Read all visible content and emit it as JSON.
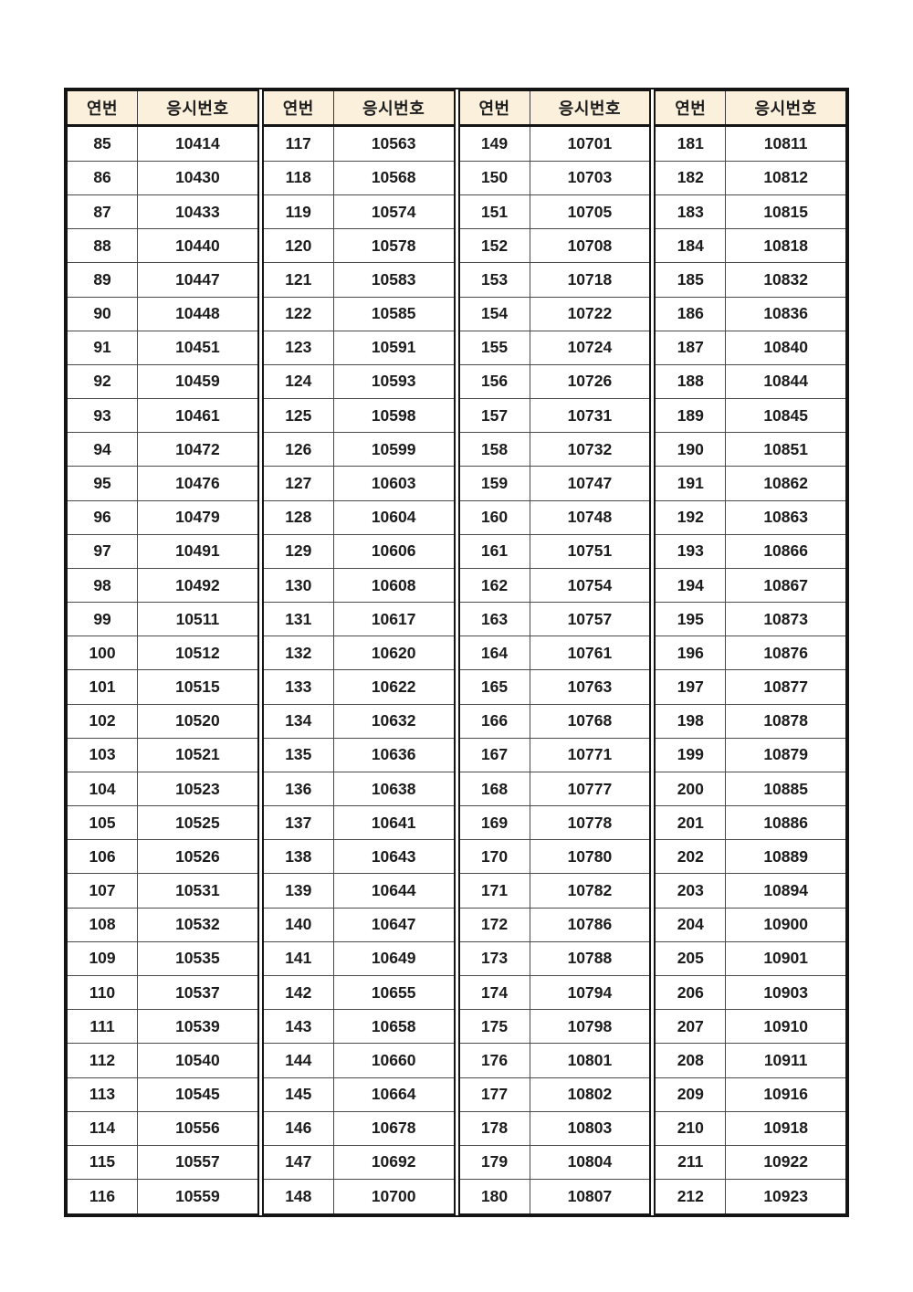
{
  "document": {
    "colors": {
      "header_bg": "#faf0dc",
      "outer_border": "#141414",
      "grid_line": "#4a4a4a",
      "text": "#1c1c1c",
      "page_bg": "#ffffff"
    },
    "header": {
      "seq_label": "연번",
      "id_label": "응시번호"
    },
    "groups": [
      {
        "rows": [
          [
            85,
            "10414"
          ],
          [
            86,
            "10430"
          ],
          [
            87,
            "10433"
          ],
          [
            88,
            "10440"
          ],
          [
            89,
            "10447"
          ],
          [
            90,
            "10448"
          ],
          [
            91,
            "10451"
          ],
          [
            92,
            "10459"
          ],
          [
            93,
            "10461"
          ],
          [
            94,
            "10472"
          ],
          [
            95,
            "10476"
          ],
          [
            96,
            "10479"
          ],
          [
            97,
            "10491"
          ],
          [
            98,
            "10492"
          ],
          [
            99,
            "10511"
          ],
          [
            100,
            "10512"
          ],
          [
            101,
            "10515"
          ],
          [
            102,
            "10520"
          ],
          [
            103,
            "10521"
          ],
          [
            104,
            "10523"
          ],
          [
            105,
            "10525"
          ],
          [
            106,
            "10526"
          ],
          [
            107,
            "10531"
          ],
          [
            108,
            "10532"
          ],
          [
            109,
            "10535"
          ],
          [
            110,
            "10537"
          ],
          [
            111,
            "10539"
          ],
          [
            112,
            "10540"
          ],
          [
            113,
            "10545"
          ],
          [
            114,
            "10556"
          ],
          [
            115,
            "10557"
          ],
          [
            116,
            "10559"
          ]
        ]
      },
      {
        "rows": [
          [
            117,
            "10563"
          ],
          [
            118,
            "10568"
          ],
          [
            119,
            "10574"
          ],
          [
            120,
            "10578"
          ],
          [
            121,
            "10583"
          ],
          [
            122,
            "10585"
          ],
          [
            123,
            "10591"
          ],
          [
            124,
            "10593"
          ],
          [
            125,
            "10598"
          ],
          [
            126,
            "10599"
          ],
          [
            127,
            "10603"
          ],
          [
            128,
            "10604"
          ],
          [
            129,
            "10606"
          ],
          [
            130,
            "10608"
          ],
          [
            131,
            "10617"
          ],
          [
            132,
            "10620"
          ],
          [
            133,
            "10622"
          ],
          [
            134,
            "10632"
          ],
          [
            135,
            "10636"
          ],
          [
            136,
            "10638"
          ],
          [
            137,
            "10641"
          ],
          [
            138,
            "10643"
          ],
          [
            139,
            "10644"
          ],
          [
            140,
            "10647"
          ],
          [
            141,
            "10649"
          ],
          [
            142,
            "10655"
          ],
          [
            143,
            "10658"
          ],
          [
            144,
            "10660"
          ],
          [
            145,
            "10664"
          ],
          [
            146,
            "10678"
          ],
          [
            147,
            "10692"
          ],
          [
            148,
            "10700"
          ]
        ]
      },
      {
        "rows": [
          [
            149,
            "10701"
          ],
          [
            150,
            "10703"
          ],
          [
            151,
            "10705"
          ],
          [
            152,
            "10708"
          ],
          [
            153,
            "10718"
          ],
          [
            154,
            "10722"
          ],
          [
            155,
            "10724"
          ],
          [
            156,
            "10726"
          ],
          [
            157,
            "10731"
          ],
          [
            158,
            "10732"
          ],
          [
            159,
            "10747"
          ],
          [
            160,
            "10748"
          ],
          [
            161,
            "10751"
          ],
          [
            162,
            "10754"
          ],
          [
            163,
            "10757"
          ],
          [
            164,
            "10761"
          ],
          [
            165,
            "10763"
          ],
          [
            166,
            "10768"
          ],
          [
            167,
            "10771"
          ],
          [
            168,
            "10777"
          ],
          [
            169,
            "10778"
          ],
          [
            170,
            "10780"
          ],
          [
            171,
            "10782"
          ],
          [
            172,
            "10786"
          ],
          [
            173,
            "10788"
          ],
          [
            174,
            "10794"
          ],
          [
            175,
            "10798"
          ],
          [
            176,
            "10801"
          ],
          [
            177,
            "10802"
          ],
          [
            178,
            "10803"
          ],
          [
            179,
            "10804"
          ],
          [
            180,
            "10807"
          ]
        ]
      },
      {
        "rows": [
          [
            181,
            "10811"
          ],
          [
            182,
            "10812"
          ],
          [
            183,
            "10815"
          ],
          [
            184,
            "10818"
          ],
          [
            185,
            "10832"
          ],
          [
            186,
            "10836"
          ],
          [
            187,
            "10840"
          ],
          [
            188,
            "10844"
          ],
          [
            189,
            "10845"
          ],
          [
            190,
            "10851"
          ],
          [
            191,
            "10862"
          ],
          [
            192,
            "10863"
          ],
          [
            193,
            "10866"
          ],
          [
            194,
            "10867"
          ],
          [
            195,
            "10873"
          ],
          [
            196,
            "10876"
          ],
          [
            197,
            "10877"
          ],
          [
            198,
            "10878"
          ],
          [
            199,
            "10879"
          ],
          [
            200,
            "10885"
          ],
          [
            201,
            "10886"
          ],
          [
            202,
            "10889"
          ],
          [
            203,
            "10894"
          ],
          [
            204,
            "10900"
          ],
          [
            205,
            "10901"
          ],
          [
            206,
            "10903"
          ],
          [
            207,
            "10910"
          ],
          [
            208,
            "10911"
          ],
          [
            209,
            "10916"
          ],
          [
            210,
            "10918"
          ],
          [
            211,
            "10922"
          ],
          [
            212,
            "10923"
          ]
        ]
      }
    ]
  }
}
